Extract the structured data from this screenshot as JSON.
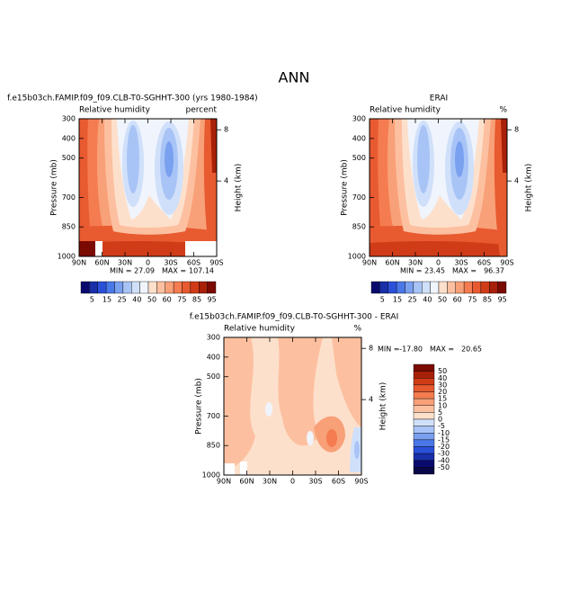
{
  "chart_data": [
    {
      "type": "contour",
      "suptitle": "ANN",
      "title": "f.e15b03ch.FAMIP.f09_f09.CLB-T0-SGHHT-300 (yrs 1980-1984)",
      "subtitle_left": "Relative humidity",
      "subtitle_right": "percent",
      "ylabel": "Pressure (mb)",
      "y2label": "Height (km)",
      "xlim": [
        90,
        -90
      ],
      "xticks": [
        {
          "value": 90,
          "label": "90N"
        },
        {
          "value": 60,
          "label": "60N"
        },
        {
          "value": 30,
          "label": "30N"
        },
        0,
        {
          "value": -30,
          "label": "30S"
        },
        {
          "value": -60,
          "label": "60S"
        },
        {
          "value": -90,
          "label": "90S"
        }
      ],
      "ylim": [
        300,
        1000
      ],
      "yticks": [
        300,
        400,
        500,
        700,
        850,
        1000
      ],
      "y2ticks": [
        8,
        4
      ],
      "min_text": "MIN =",
      "min": 27.09,
      "max_text": "MAX =",
      "max": 107.14,
      "levels": [
        5,
        15,
        25,
        40,
        50,
        60,
        75,
        85,
        95
      ],
      "colors": [
        "#0a0a6e",
        "#1a2fa8",
        "#2a50d8",
        "#4a78e8",
        "#7aa0f0",
        "#a8c4f6",
        "#d0e0fa",
        "#f0f4fc",
        "#fde0cc",
        "#fcc0a0",
        "#f8a078",
        "#f47c50",
        "#e85a30",
        "#d03c18",
        "#a82008",
        "#7a0a02"
      ]
    },
    {
      "type": "contour",
      "title": "ERAI",
      "subtitle_left": "Relative humidity",
      "subtitle_right": "%",
      "ylabel": "Pressure (mb)",
      "y2label": "Height (km)",
      "xlim": [
        90,
        -90
      ],
      "xticks": [
        {
          "value": 90,
          "label": "90N"
        },
        {
          "value": 60,
          "label": "60N"
        },
        {
          "value": 30,
          "label": "30N"
        },
        0,
        {
          "value": -30,
          "label": "30S"
        },
        {
          "value": -60,
          "label": "60S"
        },
        {
          "value": -90,
          "label": "90S"
        }
      ],
      "ylim": [
        300,
        1000
      ],
      "yticks": [
        300,
        400,
        500,
        700,
        850,
        1000
      ],
      "y2ticks": [
        8,
        4
      ],
      "min_text": "MIN =",
      "min": 23.45,
      "max_text": "MAX =",
      "max": 96.37,
      "levels": [
        5,
        15,
        25,
        40,
        50,
        60,
        75,
        85,
        95
      ],
      "colors": [
        "#0a0a6e",
        "#1a2fa8",
        "#2a50d8",
        "#4a78e8",
        "#7aa0f0",
        "#a8c4f6",
        "#d0e0fa",
        "#f0f4fc",
        "#fde0cc",
        "#fcc0a0",
        "#f8a078",
        "#f47c50",
        "#e85a30",
        "#d03c18",
        "#a82008",
        "#7a0a02"
      ]
    },
    {
      "type": "contour",
      "title": "f.e15b03ch.FAMIP.f09_f09.CLB-T0-SGHHT-300 - ERAI",
      "subtitle_left": "Relative humidity",
      "subtitle_right": "%",
      "ylabel": "Pressure (mb)",
      "y2label": "Height (km)",
      "xlim": [
        90,
        -90
      ],
      "xticks": [
        {
          "value": 90,
          "label": "90N"
        },
        {
          "value": 60,
          "label": "60N"
        },
        {
          "value": 30,
          "label": "30N"
        },
        0,
        {
          "value": -30,
          "label": "30S"
        },
        {
          "value": -60,
          "label": "60S"
        },
        {
          "value": -90,
          "label": "90S"
        }
      ],
      "ylim": [
        300,
        1000
      ],
      "yticks": [
        300,
        400,
        500,
        700,
        850,
        1000
      ],
      "y2ticks": [
        8,
        4
      ],
      "min_text": "MIN =",
      "min": {
        "value": -17.8,
        "label": "-17.80"
      },
      "max_text": "MAX =",
      "max": 20.65,
      "levels": [
        50,
        40,
        30,
        20,
        15,
        10,
        5,
        0,
        -5,
        -10,
        -15,
        -20,
        -30,
        -40,
        -50
      ],
      "colors": [
        "#7a0a02",
        "#a82008",
        "#d03c18",
        "#e85a30",
        "#f47c50",
        "#f8a078",
        "#fcc0a0",
        "#fde0cc",
        "#d0e0fa",
        "#a8c4f6",
        "#7aa0f0",
        "#4a78e8",
        "#2a50d8",
        "#1a2fa8",
        "#0a0a6e",
        "#08084a"
      ]
    }
  ]
}
